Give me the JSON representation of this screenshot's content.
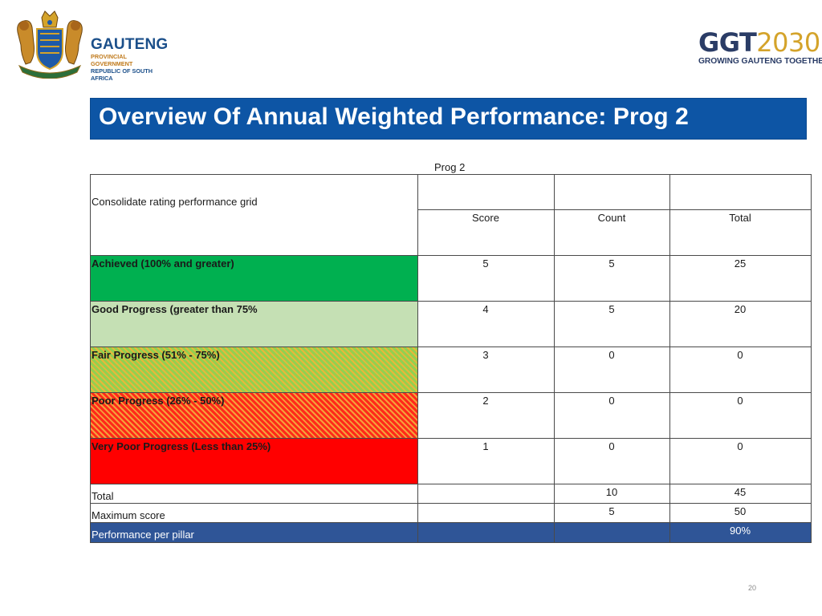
{
  "header": {
    "left_logo": {
      "name": "GAUTENG",
      "line1": "PROVINCIAL GOVERNMENT",
      "line2": "REPUBLIC OF SOUTH AFRICA"
    },
    "right_logo": {
      "mark_main": "GGT",
      "mark_year": "2030",
      "tagline": "GROWING GAUTENG TOGETHER"
    }
  },
  "title": "Overview Of Annual Weighted Performance: Prog 2",
  "table": {
    "group_label": "Prog 2",
    "grid_label": "Consolidate rating performance grid",
    "columns": [
      "Score",
      "Count",
      "Total"
    ],
    "rows": [
      {
        "label": "Achieved (100%  and greater)",
        "score": "5",
        "count": "5",
        "total": "25",
        "color": "#00b050"
      },
      {
        "label": "Good Progress (greater than 75%",
        "score": "4",
        "count": "5",
        "total": "20",
        "color": "#c5e0b4"
      },
      {
        "label": "Fair Progress (51% - 75%)",
        "score": "3",
        "count": "0",
        "total": "0",
        "color": "#92d050"
      },
      {
        "label": "Poor Progress (26% - 50%)",
        "score": "2",
        "count": "0",
        "total": "0",
        "color": "#ff2a1a"
      },
      {
        "label": "Very Poor Progress (Less than 25%)",
        "score": "1",
        "count": "0",
        "total": "0",
        "color": "#ff0000"
      }
    ],
    "total_row": {
      "label": "Total",
      "count": "10",
      "total": "45"
    },
    "max_row": {
      "label": "Maximum score",
      "count": "5",
      "total": "50"
    },
    "perf_row": {
      "label": "Performance per pillar",
      "total": "90%",
      "color": "#2f5597"
    }
  },
  "page_number": "20"
}
